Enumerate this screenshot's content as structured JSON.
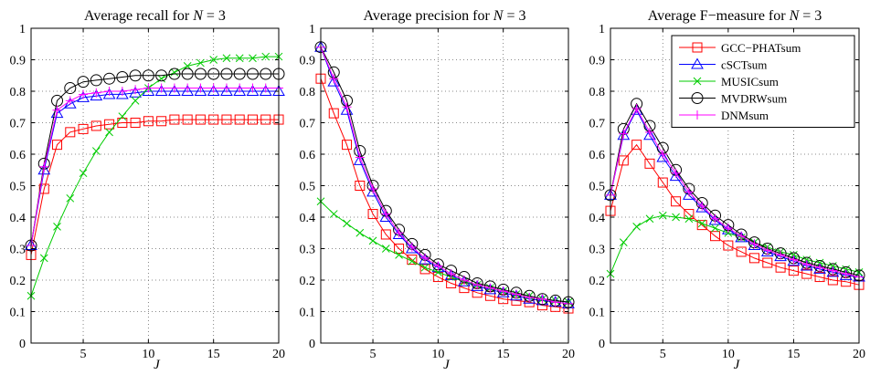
{
  "chart_data": [
    {
      "type": "line",
      "title_prefix": "Average recall for ",
      "title_var": "N",
      "title_suffix": " = 3",
      "xlabel": "J",
      "ylabel": "",
      "xlim": [
        1,
        20
      ],
      "ylim": [
        0,
        1
      ],
      "xticks": [
        5,
        10,
        15,
        20
      ],
      "yticks": [
        0,
        0.1,
        0.2,
        0.3,
        0.4,
        0.5,
        0.6,
        0.7,
        0.8,
        0.9,
        1
      ],
      "grid": true,
      "legend": null,
      "x": [
        1,
        2,
        3,
        4,
        5,
        6,
        7,
        8,
        9,
        10,
        11,
        12,
        13,
        14,
        15,
        16,
        17,
        18,
        19,
        20
      ],
      "series": [
        {
          "name": "GCC−PHATsum",
          "color": "#ff0000",
          "marker": "square",
          "values": [
            0.28,
            0.49,
            0.63,
            0.67,
            0.68,
            0.69,
            0.695,
            0.7,
            0.7,
            0.705,
            0.705,
            0.71,
            0.71,
            0.71,
            0.71,
            0.71,
            0.71,
            0.71,
            0.71,
            0.71
          ]
        },
        {
          "name": "cSCTsum",
          "color": "#0000ff",
          "marker": "triangle",
          "values": [
            0.31,
            0.55,
            0.73,
            0.76,
            0.78,
            0.785,
            0.79,
            0.79,
            0.795,
            0.8,
            0.8,
            0.8,
            0.8,
            0.8,
            0.8,
            0.8,
            0.8,
            0.8,
            0.8,
            0.8
          ]
        },
        {
          "name": "MUSICsum",
          "color": "#00cc00",
          "marker": "x",
          "values": [
            0.15,
            0.27,
            0.37,
            0.46,
            0.54,
            0.61,
            0.67,
            0.72,
            0.77,
            0.81,
            0.84,
            0.86,
            0.88,
            0.89,
            0.9,
            0.905,
            0.905,
            0.905,
            0.91,
            0.91
          ]
        },
        {
          "name": "MVDRWsum",
          "color": "#000000",
          "marker": "circle",
          "values": [
            0.31,
            0.57,
            0.77,
            0.81,
            0.83,
            0.835,
            0.84,
            0.845,
            0.85,
            0.85,
            0.85,
            0.855,
            0.855,
            0.855,
            0.855,
            0.855,
            0.855,
            0.855,
            0.855,
            0.855
          ]
        },
        {
          "name": "DNMsum",
          "color": "#ff00ff",
          "marker": "plus",
          "values": [
            0.31,
            0.56,
            0.74,
            0.77,
            0.79,
            0.795,
            0.8,
            0.8,
            0.805,
            0.81,
            0.81,
            0.81,
            0.81,
            0.81,
            0.81,
            0.81,
            0.81,
            0.81,
            0.81,
            0.81
          ]
        }
      ]
    },
    {
      "type": "line",
      "title_prefix": "Average precision for ",
      "title_var": "N",
      "title_suffix": " = 3",
      "xlabel": "J",
      "ylabel": "",
      "xlim": [
        1,
        20
      ],
      "ylim": [
        0,
        1
      ],
      "xticks": [
        5,
        10,
        15,
        20
      ],
      "yticks": [
        0,
        0.1,
        0.2,
        0.3,
        0.4,
        0.5,
        0.6,
        0.7,
        0.8,
        0.9,
        1
      ],
      "grid": true,
      "legend": null,
      "x": [
        1,
        2,
        3,
        4,
        5,
        6,
        7,
        8,
        9,
        10,
        11,
        12,
        13,
        14,
        15,
        16,
        17,
        18,
        19,
        20
      ],
      "series": [
        {
          "name": "GCC−PHATsum",
          "color": "#ff0000",
          "marker": "square",
          "values": [
            0.84,
            0.73,
            0.63,
            0.5,
            0.41,
            0.345,
            0.3,
            0.265,
            0.235,
            0.21,
            0.19,
            0.175,
            0.16,
            0.15,
            0.14,
            0.135,
            0.13,
            0.12,
            0.115,
            0.11
          ]
        },
        {
          "name": "cSCTsum",
          "color": "#0000ff",
          "marker": "triangle",
          "values": [
            0.94,
            0.83,
            0.74,
            0.58,
            0.48,
            0.4,
            0.345,
            0.3,
            0.265,
            0.24,
            0.215,
            0.195,
            0.18,
            0.17,
            0.16,
            0.15,
            0.14,
            0.135,
            0.13,
            0.125
          ]
        },
        {
          "name": "MUSICsum",
          "color": "#00cc00",
          "marker": "x",
          "values": [
            0.45,
            0.41,
            0.38,
            0.35,
            0.325,
            0.3,
            0.28,
            0.26,
            0.24,
            0.225,
            0.21,
            0.195,
            0.185,
            0.175,
            0.165,
            0.155,
            0.15,
            0.14,
            0.135,
            0.13
          ]
        },
        {
          "name": "MVDRWsum",
          "color": "#000000",
          "marker": "circle",
          "values": [
            0.94,
            0.86,
            0.77,
            0.61,
            0.5,
            0.42,
            0.36,
            0.315,
            0.28,
            0.25,
            0.23,
            0.21,
            0.19,
            0.18,
            0.17,
            0.16,
            0.15,
            0.14,
            0.135,
            0.13
          ]
        },
        {
          "name": "DNMsum",
          "color": "#ff00ff",
          "marker": "plus",
          "values": [
            0.94,
            0.84,
            0.75,
            0.59,
            0.49,
            0.41,
            0.35,
            0.305,
            0.27,
            0.245,
            0.22,
            0.2,
            0.185,
            0.175,
            0.165,
            0.155,
            0.145,
            0.14,
            0.13,
            0.125
          ]
        }
      ]
    },
    {
      "type": "line",
      "title_prefix": "Average F−measure for ",
      "title_var": "N",
      "title_suffix": " = 3",
      "xlabel": "J",
      "ylabel": "",
      "xlim": [
        1,
        20
      ],
      "ylim": [
        0,
        1
      ],
      "xticks": [
        5,
        10,
        15,
        20
      ],
      "yticks": [
        0,
        0.1,
        0.2,
        0.3,
        0.4,
        0.5,
        0.6,
        0.7,
        0.8,
        0.9,
        1
      ],
      "grid": true,
      "legend": "top-right",
      "x": [
        1,
        2,
        3,
        4,
        5,
        6,
        7,
        8,
        9,
        10,
        11,
        12,
        13,
        14,
        15,
        16,
        17,
        18,
        19,
        20
      ],
      "series": [
        {
          "name": "GCC−PHATsum",
          "color": "#ff0000",
          "marker": "square",
          "values": [
            0.42,
            0.58,
            0.63,
            0.57,
            0.51,
            0.45,
            0.41,
            0.375,
            0.34,
            0.31,
            0.29,
            0.27,
            0.255,
            0.24,
            0.23,
            0.22,
            0.21,
            0.2,
            0.195,
            0.185
          ]
        },
        {
          "name": "cSCTsum",
          "color": "#0000ff",
          "marker": "triangle",
          "values": [
            0.47,
            0.66,
            0.74,
            0.66,
            0.59,
            0.53,
            0.47,
            0.43,
            0.39,
            0.36,
            0.335,
            0.31,
            0.29,
            0.275,
            0.26,
            0.245,
            0.235,
            0.225,
            0.215,
            0.21
          ]
        },
        {
          "name": "MUSICsum",
          "color": "#00cc00",
          "marker": "x",
          "values": [
            0.22,
            0.32,
            0.37,
            0.395,
            0.405,
            0.4,
            0.395,
            0.38,
            0.365,
            0.35,
            0.335,
            0.32,
            0.305,
            0.29,
            0.28,
            0.265,
            0.255,
            0.245,
            0.235,
            0.225
          ]
        },
        {
          "name": "MVDRWsum",
          "color": "#000000",
          "marker": "circle",
          "values": [
            0.47,
            0.68,
            0.76,
            0.69,
            0.62,
            0.55,
            0.49,
            0.445,
            0.405,
            0.375,
            0.345,
            0.32,
            0.3,
            0.285,
            0.27,
            0.255,
            0.245,
            0.235,
            0.225,
            0.215
          ]
        },
        {
          "name": "DNMsum",
          "color": "#ff00ff",
          "marker": "plus",
          "values": [
            0.47,
            0.665,
            0.745,
            0.67,
            0.6,
            0.54,
            0.48,
            0.435,
            0.395,
            0.365,
            0.34,
            0.315,
            0.295,
            0.28,
            0.265,
            0.25,
            0.24,
            0.23,
            0.22,
            0.21
          ]
        }
      ]
    }
  ]
}
